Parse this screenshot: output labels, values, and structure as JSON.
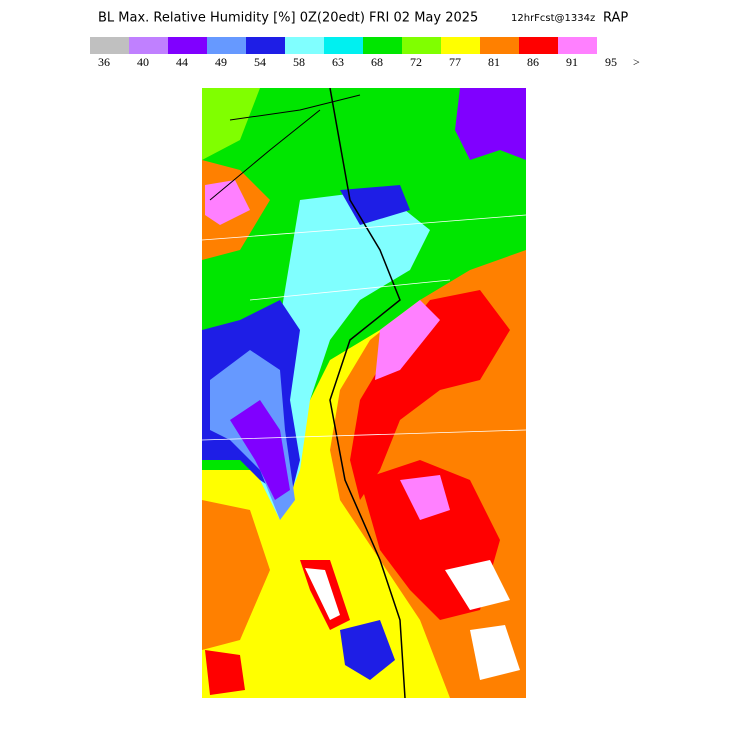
{
  "header": {
    "title": "BL Max. Relative Humidity [%] 0Z(20edt) FRI 02 May 2025",
    "forecast": "12hrFcst@1334z",
    "model": "RAP"
  },
  "legend": {
    "colors": [
      "#c0c0c0",
      "#c080ff",
      "#8000ff",
      "#6699ff",
      "#1e1ee6",
      "#80ffff",
      "#00f0f0",
      "#00e600",
      "#80ff00",
      "#ffff00",
      "#ff8000",
      "#ff0000",
      "#ff80ff"
    ],
    "labels": [
      "36",
      "40",
      "44",
      "49",
      "54",
      "58",
      "63",
      "68",
      "72",
      "77",
      "81",
      "86",
      "91",
      "95",
      ">"
    ]
  }
}
